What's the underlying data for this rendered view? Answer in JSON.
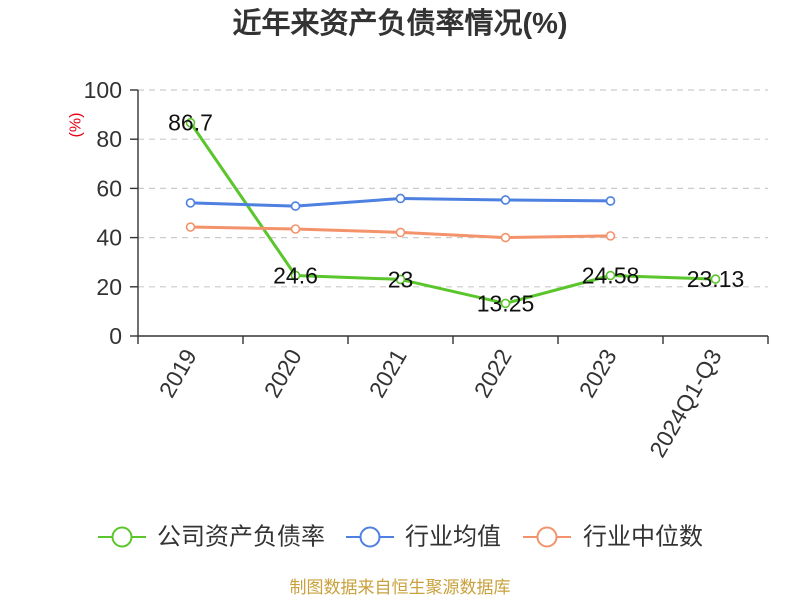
{
  "chart_data": {
    "type": "line",
    "title": "近年来资产负债率情况(%)",
    "xlabel": "",
    "ylabel": "(%)",
    "categories": [
      "2019",
      "2020",
      "2021",
      "2022",
      "2023",
      "2024Q1-Q3"
    ],
    "ylim": [
      0,
      100
    ],
    "yticks": [
      0,
      20,
      40,
      60,
      80,
      100
    ],
    "grid": true,
    "legend": "bottom",
    "series": [
      {
        "name": "公司资产负债率",
        "color": "#5bc52c",
        "data_labels": true,
        "values": [
          86.7,
          24.6,
          23,
          13.25,
          24.58,
          23.13
        ]
      },
      {
        "name": "行业均值",
        "color": "#4d80e0",
        "data_labels": false,
        "values": [
          54.1,
          52.8,
          55.9,
          55.3,
          54.9,
          null
        ]
      },
      {
        "name": "行业中位数",
        "color": "#f4936b",
        "data_labels": false,
        "values": [
          44.3,
          43.5,
          42.1,
          40.0,
          40.7,
          null
        ]
      }
    ]
  },
  "source": "制图数据来自恒生聚源数据库",
  "colors": {
    "ylabel": "#e60012",
    "source": "#c9a13c",
    "axis": "#333333",
    "grid": "#cccccc"
  }
}
